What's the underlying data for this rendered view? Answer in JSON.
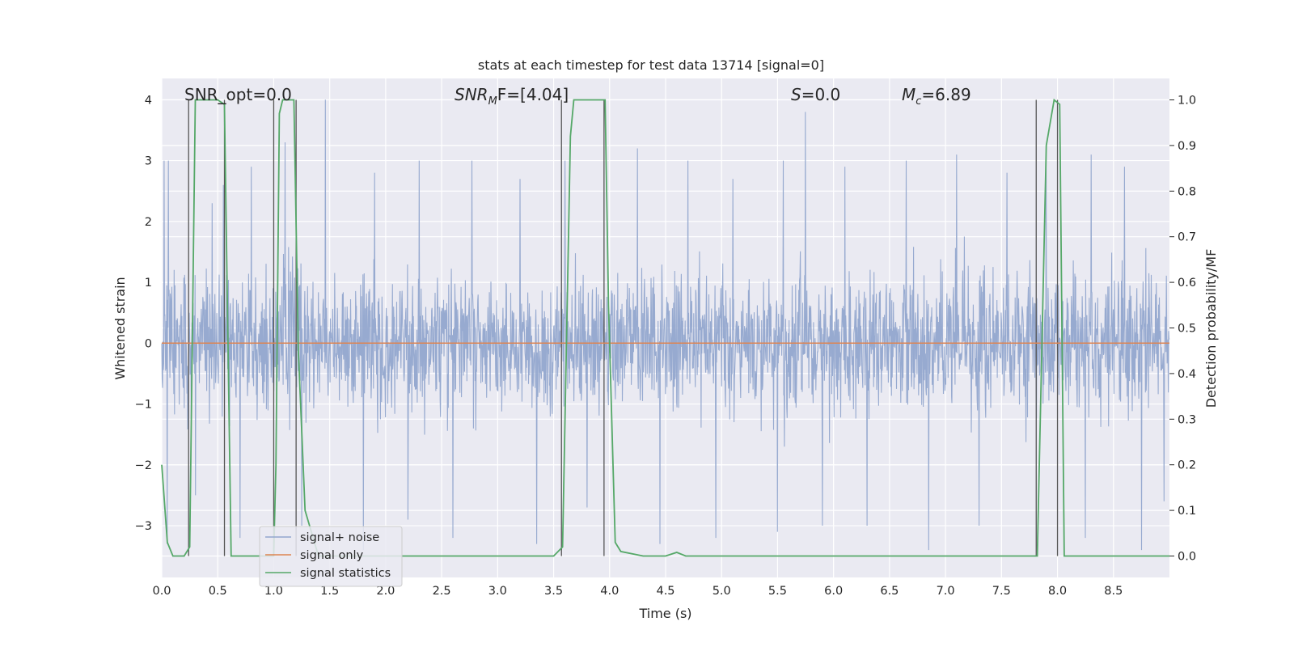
{
  "chart_data": {
    "type": "line",
    "title": "stats at each timestep for test data 13714 [signal=0]",
    "xlabel": "Time (s)",
    "ylabel": "Whitened strain",
    "ylabel_right": "Detection probability/MF",
    "xlim": [
      0,
      9
    ],
    "ylim": [
      -3.85,
      4.35
    ],
    "ylim_right": [
      -0.047,
      1.047
    ],
    "x_ticks": [
      "0.0",
      "0.5",
      "1.0",
      "1.5",
      "2.0",
      "2.5",
      "3.0",
      "3.5",
      "4.0",
      "4.5",
      "5.0",
      "5.5",
      "6.0",
      "6.5",
      "7.0",
      "7.5",
      "8.0",
      "8.5"
    ],
    "y_ticks": [
      "−3",
      "−2",
      "−1",
      "0",
      "1",
      "2",
      "3",
      "4"
    ],
    "y_ticks_right": [
      "0.0",
      "0.1",
      "0.2",
      "0.3",
      "0.4",
      "0.5",
      "0.6",
      "0.7",
      "0.8",
      "0.9",
      "1.0"
    ],
    "grid": true,
    "legend_position": "lower-left",
    "annotations": {
      "snr_opt": "SNR_opt=0.0",
      "snr_mf_base": "SNR",
      "snr_mf_sub": "M",
      "snr_mf_rest": "F=[4.04]",
      "s_italic": "S",
      "s_rest": "=0.0",
      "mc_base": "M",
      "mc_sub": "c",
      "mc_rest": "=6.89"
    },
    "series": [
      {
        "name": "signal+ noise",
        "color": "#92a6ce",
        "description_range": [
          -3.5,
          4.0
        ],
        "peaks": [
          [
            0.02,
            3.0
          ],
          [
            0.06,
            3.0
          ],
          [
            0.3,
            3.6
          ],
          [
            0.45,
            2.3
          ],
          [
            0.55,
            2.6
          ],
          [
            0.8,
            2.9
          ],
          [
            1.1,
            3.3
          ],
          [
            1.46,
            4.0
          ],
          [
            1.9,
            2.8
          ],
          [
            2.3,
            3.0
          ],
          [
            2.77,
            3.0
          ],
          [
            3.2,
            2.7
          ],
          [
            3.6,
            3.0
          ],
          [
            4.25,
            3.2
          ],
          [
            4.7,
            3.0
          ],
          [
            5.1,
            2.7
          ],
          [
            5.55,
            3.0
          ],
          [
            5.75,
            3.8
          ],
          [
            6.1,
            2.9
          ],
          [
            6.65,
            3.0
          ],
          [
            7.1,
            3.1
          ],
          [
            7.55,
            2.8
          ],
          [
            7.9,
            3.2
          ],
          [
            8.3,
            3.1
          ],
          [
            8.6,
            2.9
          ],
          [
            8.95,
            2.6
          ]
        ],
        "troughs": [
          [
            0.05,
            -3.3
          ],
          [
            0.3,
            -2.5
          ],
          [
            0.7,
            -3.2
          ],
          [
            1.25,
            -3.0
          ],
          [
            1.8,
            -3.4
          ],
          [
            2.2,
            -2.9
          ],
          [
            2.6,
            -3.2
          ],
          [
            3.35,
            -3.3
          ],
          [
            3.8,
            -2.7
          ],
          [
            4.45,
            -3.3
          ],
          [
            4.95,
            -3.2
          ],
          [
            5.5,
            -3.1
          ],
          [
            5.9,
            -3.0
          ],
          [
            6.3,
            -3.0
          ],
          [
            6.85,
            -3.4
          ],
          [
            7.3,
            -3.0
          ],
          [
            8.25,
            -3.2
          ],
          [
            8.75,
            -3.4
          ],
          [
            8.95,
            -2.6
          ]
        ]
      },
      {
        "name": "signal only",
        "color": "#dd8452",
        "x": [
          0,
          9
        ],
        "y": [
          0,
          0
        ]
      },
      {
        "name": "signal statistics",
        "color": "#55a868",
        "axis": "right",
        "x": [
          0.0,
          0.05,
          0.1,
          0.2,
          0.25,
          0.3,
          0.35,
          0.5,
          0.56,
          0.62,
          1.0,
          1.02,
          1.05,
          1.08,
          1.18,
          1.22,
          1.28,
          1.4,
          2.0,
          2.3,
          3.5,
          3.58,
          3.65,
          3.68,
          3.96,
          3.99,
          4.05,
          4.1,
          4.3,
          4.5,
          4.6,
          4.68,
          4.8,
          5.0,
          7.5,
          7.82,
          7.9,
          7.97,
          8.02,
          8.06,
          9.0
        ],
        "y": [
          0.2,
          0.03,
          0.0,
          0.0,
          0.02,
          1.0,
          1.0,
          1.0,
          0.99,
          0.0,
          0.0,
          0.2,
          0.97,
          1.0,
          1.0,
          0.45,
          0.1,
          0.0,
          0.0,
          0.0,
          0.0,
          0.02,
          0.92,
          1.0,
          1.0,
          0.55,
          0.03,
          0.01,
          0.0,
          0.0,
          0.008,
          0.0,
          0.0,
          0.0,
          0.0,
          0.0,
          0.9,
          1.0,
          0.99,
          0.0,
          0.0
        ]
      }
    ],
    "vertical_lines": [
      0.24,
      0.56,
      1.0,
      1.2,
      3.57,
      3.95,
      7.81,
      8.0
    ]
  }
}
